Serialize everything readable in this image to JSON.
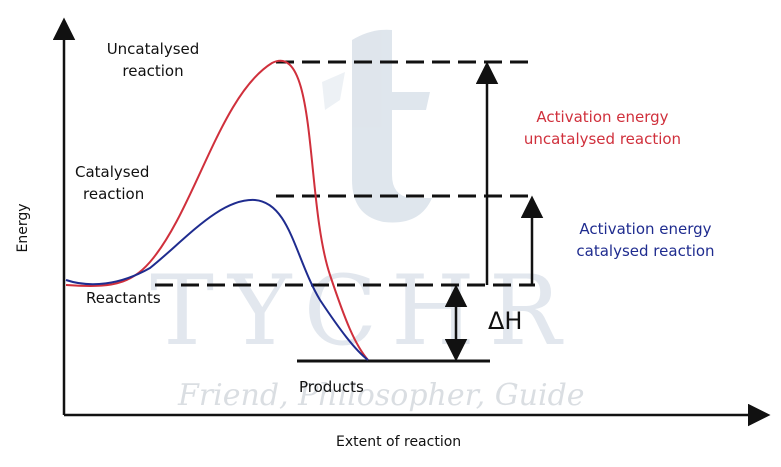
{
  "labels": {
    "uncatalysed": [
      "Uncatalysed",
      "reaction"
    ],
    "catalysed": [
      "Catalysed",
      "reaction"
    ],
    "reactants": "Reactants",
    "products": "Products",
    "ea_uncat": [
      "Activation energy",
      "uncatalysed reaction"
    ],
    "ea_cat": [
      "Activation energy",
      "catalysed reaction"
    ],
    "delta_h": "ΔH",
    "y_axis": "Energy",
    "x_axis": "Extent of reaction"
  },
  "watermark": {
    "letters": "TYCHR",
    "tagline": "Friend, Philosopher, Guide"
  },
  "colors": {
    "uncatalysed_curve": "#d0303c",
    "catalysed_curve": "#1f2c8f",
    "axes": "#111111",
    "watermark": "#c5d1de"
  }
}
